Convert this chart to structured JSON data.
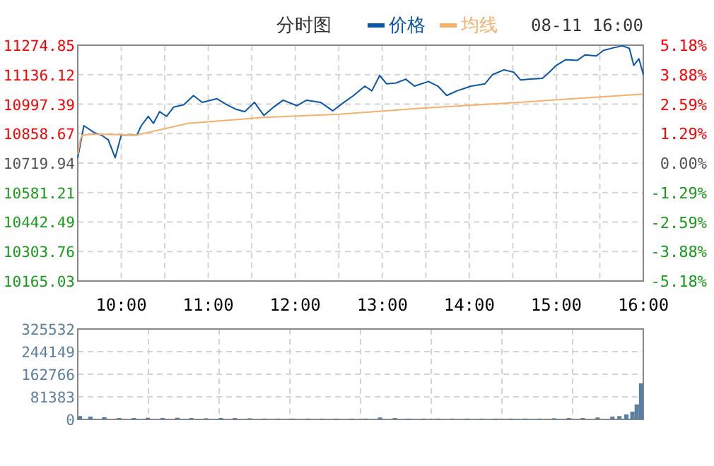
{
  "chart_data": [
    {
      "type": "line",
      "title": "分时图",
      "legend": "top",
      "grid": true,
      "annotations": [
        "08-11 16:00"
      ],
      "xlim": [
        9.5,
        16
      ],
      "xticks": [
        {
          "value": 10,
          "label": "10:00"
        },
        {
          "value": 10.5,
          "label": null
        },
        {
          "value": 11,
          "label": "11:00"
        },
        {
          "value": 11.5,
          "label": null
        },
        {
          "value": 12,
          "label": "12:00"
        },
        {
          "value": 12.5,
          "label": null
        },
        {
          "value": 13,
          "label": "13:00"
        },
        {
          "value": 13.5,
          "label": null
        },
        {
          "value": 14,
          "label": "14:00"
        },
        {
          "value": 14.5,
          "label": null
        },
        {
          "value": 15,
          "label": "15:00"
        },
        {
          "value": 15.5,
          "label": null
        },
        {
          "value": 16,
          "label": "16:00"
        }
      ],
      "ylim": [
        10165.03,
        11274.85
      ],
      "yticks": [
        {
          "value": 10165.03,
          "label": "10165.03"
        },
        {
          "value": 10303.76,
          "label": "10303.76"
        },
        {
          "value": 10442.49,
          "label": "10442.49"
        },
        {
          "value": 10581.21,
          "label": "10581.21"
        },
        {
          "value": 10719.94,
          "label": "10719.94"
        },
        {
          "value": 10858.67,
          "label": "10858.67"
        },
        {
          "value": 10997.39,
          "label": "10997.39"
        },
        {
          "value": 11136.12,
          "label": "11136.12"
        },
        {
          "value": 11274.85,
          "label": "11274.85"
        }
      ],
      "y2lim": [
        -5.18,
        5.18
      ],
      "y2ticks": [
        {
          "value": -5.18,
          "label": "-5.18%"
        },
        {
          "value": -3.88,
          "label": "-3.88%"
        },
        {
          "value": -2.59,
          "label": "-2.59%"
        },
        {
          "value": -1.29,
          "label": "-1.29%"
        },
        {
          "value": 0,
          "label": "0.00%"
        },
        {
          "value": 1.29,
          "label": "1.29%"
        },
        {
          "value": 2.59,
          "label": "2.59%"
        },
        {
          "value": 3.88,
          "label": "3.88%"
        },
        {
          "value": 5.18,
          "label": "5.18%"
        }
      ],
      "series": [
        {
          "name": "价格",
          "color": "#0a56a8",
          "x": [
            9.5,
            9.57,
            9.69,
            9.77,
            9.85,
            9.93,
            10.0,
            10.18,
            10.23,
            10.31,
            10.37,
            10.44,
            10.52,
            10.6,
            10.72,
            10.83,
            10.93,
            11.1,
            11.21,
            11.32,
            11.42,
            11.53,
            11.64,
            11.75,
            11.86,
            12.02,
            12.13,
            12.29,
            12.43,
            12.56,
            12.67,
            12.8,
            12.88,
            12.97,
            13.05,
            13.16,
            13.27,
            13.37,
            13.53,
            13.64,
            13.74,
            13.86,
            14.02,
            14.18,
            14.27,
            14.4,
            14.51,
            14.59,
            14.7,
            14.84,
            14.92,
            15.0,
            15.11,
            15.24,
            15.33,
            15.46,
            15.54,
            15.65,
            15.76,
            15.84,
            15.89,
            15.95,
            16.0
          ],
          "values": [
            10745,
            10896,
            10863,
            10852,
            10830,
            10745,
            10852,
            10852,
            10896,
            10940,
            10907,
            10962,
            10940,
            10983,
            10995,
            11038,
            11006,
            11023,
            10995,
            10973,
            10962,
            11006,
            10944,
            10983,
            11016,
            10990,
            11016,
            11006,
            10966,
            11006,
            11038,
            11082,
            11060,
            11132,
            11093,
            11097,
            11115,
            11082,
            11104,
            11082,
            11038,
            11060,
            11082,
            11093,
            11137,
            11159,
            11148,
            11111,
            11115,
            11119,
            11148,
            11180,
            11207,
            11203,
            11229,
            11224,
            11250,
            11262,
            11272,
            11260,
            11180,
            11211,
            11137
          ]
        },
        {
          "name": "均线",
          "color": "#f5b06a",
          "x": [
            9.5,
            9.53,
            9.55,
            9.69,
            10.18,
            10.77,
            11.64,
            12.51,
            13.48,
            14.57,
            15.11,
            16.0
          ],
          "values": [
            10760,
            10830,
            10852,
            10856,
            10852,
            10907,
            10935,
            10950,
            10979,
            11006,
            11021,
            11045
          ]
        }
      ]
    },
    {
      "type": "bar",
      "grid": true,
      "tick_labels": "y",
      "color": "#5b7fa0",
      "xlim": [
        9.5,
        16
      ],
      "xticks": [
        {
          "value": 10.3125,
          "label": null
        },
        {
          "value": 11.125,
          "label": null
        },
        {
          "value": 11.9375,
          "label": null
        },
        {
          "value": 12.75,
          "label": null
        },
        {
          "value": 13.5625,
          "label": null
        },
        {
          "value": 14.375,
          "label": null
        },
        {
          "value": 15.1875,
          "label": null
        }
      ],
      "ylim": [
        0,
        325532
      ],
      "yticks": [
        0,
        81383,
        162766,
        244149,
        325532
      ],
      "x": [
        9.55,
        9.67,
        9.83,
        10.0,
        10.17,
        10.33,
        10.5,
        10.67,
        10.83,
        11.0,
        11.17,
        11.33,
        11.5,
        11.67,
        11.83,
        12.0,
        12.17,
        12.33,
        12.5,
        12.67,
        12.83,
        13.0,
        13.17,
        13.33,
        13.5,
        13.67,
        13.83,
        14.0,
        14.17,
        14.33,
        14.5,
        14.67,
        14.83,
        15.0,
        15.17,
        15.33,
        15.5,
        15.67,
        15.75,
        15.83,
        15.9,
        15.95,
        16.0
      ],
      "values": [
        12000,
        10000,
        8000,
        5000,
        5000,
        6000,
        5000,
        6000,
        5000,
        4000,
        5000,
        5000,
        4000,
        3000,
        3000,
        3000,
        3000,
        3000,
        3000,
        3000,
        3000,
        7000,
        5000,
        3000,
        3000,
        3000,
        3000,
        3000,
        3000,
        3000,
        3000,
        3000,
        3000,
        4000,
        5000,
        5000,
        7000,
        10000,
        12000,
        18000,
        28000,
        54000,
        130000
      ]
    }
  ]
}
